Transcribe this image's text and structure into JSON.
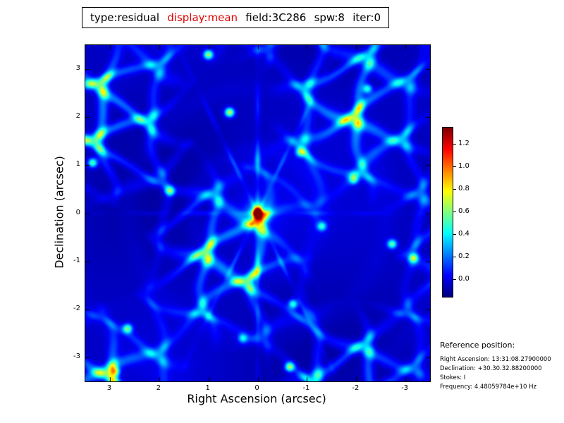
{
  "figure": {
    "background": "#ffffff"
  },
  "title_bar": {
    "segments": [
      {
        "label": "type:residual",
        "color": "#000000"
      },
      {
        "label": "display:mean",
        "color": "#e00000"
      },
      {
        "label": "field:3C286",
        "color": "#000000"
      },
      {
        "label": "spw:8",
        "color": "#000000"
      },
      {
        "label": "iter:0",
        "color": "#000000"
      }
    ]
  },
  "chart_data": {
    "type": "heatmap",
    "title": "type:residual display:mean field:3C286 spw:8 iter:0",
    "xlabel": "Right Ascension (arcsec)",
    "ylabel": "Declination (arcsec)",
    "x_ticks": [
      3,
      2,
      1,
      0,
      -1,
      -2,
      -3
    ],
    "y_ticks": [
      3,
      2,
      1,
      0,
      -1,
      -2,
      -3
    ],
    "xlim": [
      3.5,
      -3.5
    ],
    "ylim": [
      -3.5,
      3.5
    ],
    "grid": false,
    "colormap": "jet",
    "colorbar": {
      "ticks": [
        0.0,
        0.2,
        0.4,
        0.6,
        0.8,
        1.0,
        1.2
      ],
      "vmin": -0.15,
      "vmax": 1.35,
      "position": "right"
    },
    "source_peak": {
      "ra": 0.0,
      "dec": 0.0,
      "value": 1.3
    },
    "background_level": -0.06,
    "sidelobe_web_level": 0.25,
    "web_cell_size_arcsec": 1.04,
    "bright_knots": [
      {
        "ra": 3.35,
        "dec": 1.05,
        "amp": 0.6
      },
      {
        "ra": 1.0,
        "dec": 3.3,
        "amp": 0.7
      },
      {
        "ra": 0.57,
        "dec": 2.1,
        "amp": 0.75
      },
      {
        "ra": -0.87,
        "dec": 1.27,
        "amp": 0.55
      },
      {
        "ra": -1.3,
        "dec": -0.27,
        "amp": 0.5
      },
      {
        "ra": -2.73,
        "dec": -0.64,
        "amp": 0.6
      },
      {
        "ra": -3.16,
        "dec": -0.93,
        "amp": 0.55
      },
      {
        "ra": 1.78,
        "dec": 0.46,
        "amp": 0.5
      },
      {
        "ra": -0.72,
        "dec": -1.89,
        "amp": 0.55
      },
      {
        "ra": -0.65,
        "dec": -3.2,
        "amp": 0.7
      },
      {
        "ra": 2.64,
        "dec": -2.4,
        "amp": 0.6
      },
      {
        "ra": -2.23,
        "dec": 2.59,
        "amp": 0.5
      },
      {
        "ra": 2.9,
        "dec": -3.3,
        "amp": 0.6
      },
      {
        "ra": 0.3,
        "dec": -2.6,
        "amp": 0.45
      },
      {
        "ra": -1.95,
        "dec": 0.7,
        "amp": 0.5
      }
    ],
    "description": "Interferometric residual image: compact bright source at field center (jet-red peak ~1.3) over a dark blue background crossed by a faint cyan web of sidelobe ridges with scattered green/yellow knots and rays through the center."
  },
  "reference_position": {
    "heading": "Reference position:",
    "lines": [
      "Right Ascension: 13:31:08.27900000",
      "Declination: +30.30.32.88200000",
      "Stokes: I",
      "Frequency: 4.48059784e+10 Hz"
    ]
  }
}
